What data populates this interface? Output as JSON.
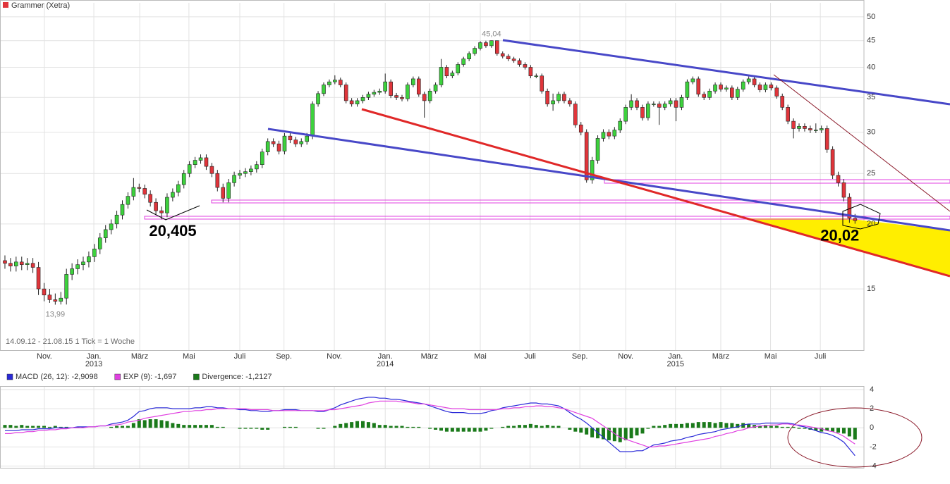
{
  "chart_data": [
    {
      "type": "candlestick",
      "title": "Grammer (Xetra)",
      "title_color": "#e0353b",
      "footnote": "14.09.12 - 21.08.15   1 Tick = 1 Woche",
      "up_color": "#3dd13d",
      "down_color": "#e0353b",
      "log_scale": true,
      "grid": true,
      "xlim": [
        -0.88,
        153.6
      ],
      "ylim": [
        11.44,
        53.2
      ],
      "yticks": [
        50,
        45,
        40,
        35,
        30,
        25,
        20,
        15
      ],
      "xticks": [
        {
          "value": 7.06,
          "label": "Nov."
        },
        {
          "value": 15.9,
          "label": "Jan."
        },
        {
          "value": 24.1,
          "label": "März"
        },
        {
          "value": 32.9,
          "label": "Mai"
        },
        {
          "value": 42.0,
          "label": "Juli"
        },
        {
          "value": 49.9,
          "label": "Sep."
        },
        {
          "value": 58.9,
          "label": "Nov."
        },
        {
          "value": 68.0,
          "label": "Jan."
        },
        {
          "value": 75.9,
          "label": "März"
        },
        {
          "value": 85.0,
          "label": "Mai"
        },
        {
          "value": 93.9,
          "label": "Juli"
        },
        {
          "value": 102.8,
          "label": "Sep."
        },
        {
          "value": 111.0,
          "label": "Nov."
        },
        {
          "value": 119.9,
          "label": "Jan."
        },
        {
          "value": 128.0,
          "label": "März"
        },
        {
          "value": 136.9,
          "label": "Mai"
        },
        {
          "value": 145.8,
          "label": "Juli"
        }
      ],
      "year_labels": [
        {
          "value": 15.9,
          "label": "2013"
        },
        {
          "value": 68.0,
          "label": "2014"
        },
        {
          "value": 119.9,
          "label": "2015"
        }
      ],
      "open": [
        17.0,
        16.8,
        16.6,
        16.9,
        16.7,
        16.8,
        16.5,
        15.0,
        14.6,
        14.3,
        14.2,
        14.4,
        16.0,
        16.4,
        16.7,
        16.9,
        17.3,
        17.9,
        18.8,
        19.5,
        20.0,
        20.8,
        21.8,
        22.6,
        23.5,
        23.4,
        22.8,
        22.0,
        21.2,
        21.0,
        22.5,
        23.0,
        23.8,
        25.0,
        26.0,
        26.5,
        26.8,
        25.8,
        25.0,
        23.5,
        22.4,
        24.0,
        24.8,
        25.0,
        25.2,
        25.5,
        26.0,
        27.5,
        28.8,
        28.5,
        27.6,
        29.5,
        29.0,
        28.5,
        28.8,
        29.5,
        34.0,
        35.6,
        37.0,
        37.5,
        37.8,
        37.0,
        34.5,
        34.0,
        34.5,
        35.0,
        35.5,
        35.8,
        36.0,
        37.5,
        35.3,
        35.0,
        34.8,
        37.0,
        38.0,
        35.5,
        34.5,
        36.0,
        37.0,
        40.0,
        38.5,
        39.0,
        40.5,
        41.5,
        42.5,
        43.5,
        44.6,
        44.0,
        45.0,
        42.5,
        42.0,
        41.5,
        41.2,
        40.5,
        40.0,
        38.5,
        38.5,
        36.0,
        34.0,
        34.5,
        35.5,
        34.5,
        34.0,
        31.0,
        30.0,
        24.3,
        26.5,
        29.2,
        30.0,
        29.5,
        30.3,
        31.5,
        33.5,
        34.5,
        33.5,
        32.0,
        34.0,
        34.0,
        33.5,
        34.0,
        34.5,
        33.5,
        35.0,
        37.5,
        38.0,
        35.5,
        35.0,
        36.0,
        37.0,
        36.3,
        36.5,
        35.0,
        36.3,
        37.5,
        38.0,
        37.0,
        36.2,
        37.0,
        36.5,
        35.2,
        33.5,
        31.5,
        30.5,
        30.8,
        30.5,
        30.3,
        30.3,
        30.5,
        27.8,
        24.8,
        24.0,
        22.5,
        20.5
      ],
      "high": [
        17.4,
        17.2,
        17.3,
        17.3,
        17.2,
        17.2,
        16.9,
        15.4,
        15.0,
        14.7,
        14.8,
        16.4,
        16.8,
        17.1,
        17.3,
        17.7,
        18.3,
        19.2,
        19.9,
        20.4,
        21.2,
        22.2,
        23.0,
        24.5,
        23.9,
        23.8,
        23.2,
        22.4,
        21.6,
        22.9,
        23.4,
        24.2,
        25.4,
        26.4,
        26.9,
        27.2,
        27.2,
        26.2,
        25.4,
        23.9,
        24.4,
        25.2,
        25.4,
        25.6,
        25.9,
        26.4,
        27.9,
        29.2,
        29.2,
        28.9,
        29.9,
        29.9,
        29.4,
        29.2,
        29.9,
        34.4,
        36.0,
        37.4,
        37.9,
        38.6,
        38.2,
        37.4,
        34.9,
        34.9,
        35.4,
        35.9,
        36.2,
        36.4,
        38.9,
        37.9,
        35.7,
        35.4,
        37.4,
        38.4,
        38.4,
        35.9,
        36.4,
        37.4,
        41.5,
        40.4,
        39.4,
        40.9,
        41.9,
        42.9,
        43.9,
        44.9,
        45.0,
        45.04,
        45.0,
        42.9,
        42.4,
        41.9,
        41.6,
        40.9,
        40.4,
        38.9,
        38.9,
        36.4,
        35.6,
        35.9,
        35.9,
        34.9,
        34.4,
        31.4,
        30.4,
        26.9,
        29.6,
        30.4,
        30.4,
        30.7,
        31.9,
        33.9,
        35.5,
        34.9,
        33.9,
        34.4,
        34.4,
        34.4,
        34.4,
        34.9,
        34.9,
        35.4,
        37.9,
        38.4,
        38.4,
        35.9,
        36.4,
        37.4,
        37.4,
        36.9,
        36.9,
        36.7,
        37.9,
        38.4,
        38.4,
        37.4,
        37.4,
        37.4,
        36.9,
        35.6,
        33.9,
        31.9,
        31.2,
        31.2,
        30.9,
        31.2,
        30.9,
        30.9,
        28.2,
        25.2,
        24.4,
        22.9,
        20.9
      ],
      "low": [
        16.4,
        16.2,
        16.2,
        16.3,
        16.3,
        16.1,
        14.6,
        14.2,
        14.1,
        13.99,
        14.0,
        14.0,
        15.6,
        16.0,
        16.3,
        16.5,
        16.9,
        17.5,
        18.4,
        19.1,
        19.6,
        20.4,
        21.4,
        22.2,
        23.0,
        22.4,
        21.6,
        20.8,
        20.405,
        20.6,
        22.1,
        22.6,
        23.4,
        24.6,
        25.6,
        26.1,
        25.4,
        24.6,
        23.1,
        22.0,
        22.0,
        23.6,
        24.4,
        24.6,
        24.8,
        25.1,
        25.6,
        27.1,
        28.1,
        27.2,
        27.2,
        28.6,
        28.1,
        28.1,
        28.4,
        29.1,
        33.6,
        35.2,
        36.6,
        37.1,
        36.6,
        34.1,
        33.6,
        33.6,
        34.1,
        34.6,
        35.1,
        35.4,
        35.6,
        34.9,
        34.6,
        34.4,
        34.4,
        36.6,
        35.1,
        32.0,
        34.1,
        35.6,
        36.6,
        38.1,
        38.1,
        38.6,
        40.1,
        41.1,
        42.1,
        43.1,
        43.6,
        43.6,
        42.1,
        41.6,
        41.1,
        40.8,
        40.1,
        39.6,
        38.1,
        38.1,
        35.6,
        33.6,
        33.0,
        34.1,
        34.1,
        33.6,
        30.6,
        29.6,
        24.0,
        23.9,
        26.1,
        28.8,
        29.1,
        29.1,
        29.9,
        31.1,
        33.1,
        33.1,
        31.6,
        31.6,
        33.6,
        31.0,
        33.1,
        33.6,
        31.5,
        33.1,
        34.6,
        37.1,
        35.1,
        34.6,
        34.6,
        35.6,
        35.9,
        35.9,
        34.6,
        34.6,
        35.9,
        37.1,
        36.6,
        35.8,
        35.8,
        36.1,
        34.8,
        33.1,
        31.1,
        29.2,
        30.1,
        30.1,
        29.9,
        29.9,
        29.9,
        27.4,
        24.4,
        23.6,
        22.1,
        20.1,
        20.02
      ],
      "close": [
        16.8,
        16.6,
        16.9,
        16.7,
        16.8,
        16.5,
        15.0,
        14.6,
        14.3,
        14.2,
        14.4,
        16.0,
        16.4,
        16.7,
        16.9,
        17.3,
        17.9,
        18.8,
        19.5,
        20.0,
        20.8,
        21.8,
        22.6,
        23.5,
        23.4,
        22.8,
        22.0,
        21.2,
        21.0,
        22.5,
        23.0,
        23.8,
        25.0,
        26.0,
        26.5,
        26.8,
        25.8,
        25.0,
        23.5,
        22.4,
        24.0,
        24.8,
        25.0,
        25.2,
        25.5,
        26.0,
        27.5,
        28.8,
        28.5,
        27.6,
        29.5,
        29.0,
        28.5,
        28.8,
        29.5,
        34.0,
        35.6,
        37.0,
        37.5,
        37.8,
        37.0,
        34.5,
        34.0,
        34.5,
        35.0,
        35.5,
        35.8,
        36.0,
        37.5,
        35.3,
        35.0,
        34.8,
        37.0,
        38.0,
        35.5,
        34.5,
        36.0,
        37.0,
        40.0,
        38.5,
        39.0,
        40.5,
        41.5,
        42.5,
        43.5,
        44.6,
        44.0,
        45.0,
        42.5,
        42.0,
        41.5,
        41.2,
        40.5,
        40.0,
        38.5,
        38.5,
        36.0,
        34.0,
        34.5,
        35.5,
        34.5,
        34.0,
        31.0,
        30.0,
        24.3,
        26.5,
        29.2,
        30.0,
        29.5,
        30.3,
        31.5,
        33.5,
        34.5,
        33.5,
        32.0,
        34.0,
        34.0,
        33.5,
        34.0,
        34.5,
        33.5,
        35.0,
        37.5,
        38.0,
        35.5,
        35.0,
        36.0,
        37.0,
        36.3,
        36.5,
        35.0,
        36.3,
        37.5,
        38.0,
        37.0,
        36.2,
        37.0,
        36.5,
        35.2,
        33.5,
        31.5,
        30.5,
        30.8,
        30.5,
        30.3,
        30.3,
        30.5,
        27.8,
        24.8,
        24.0,
        22.5,
        20.5,
        20.3
      ],
      "extreme_labels": [
        {
          "value": 45.04,
          "label": "45,04"
        },
        {
          "value": 13.99,
          "label": "13,99"
        }
      ],
      "callouts": [
        {
          "value": 20.405,
          "label": "20,405"
        },
        {
          "value": 20.02,
          "label": "20,02"
        }
      ]
    },
    {
      "type": "macd",
      "xlim": [
        -0.88,
        153.6
      ],
      "ylim": [
        -4.26,
        4.37
      ],
      "yticks": [
        4,
        2,
        0,
        -2,
        -4
      ],
      "grid": true,
      "series": [
        {
          "name": "MACD (26, 12): -2,9098",
          "color": "#2a2ad8",
          "kind": "line",
          "values": [
            -0.3,
            -0.3,
            -0.3,
            -0.2,
            -0.2,
            -0.2,
            -0.1,
            -0.1,
            -0.1,
            0.0,
            0.0,
            0.0,
            0.0,
            0.1,
            0.1,
            0.1,
            0.1,
            0.2,
            0.2,
            0.4,
            0.5,
            0.6,
            0.8,
            1.2,
            1.7,
            1.8,
            2.0,
            2.1,
            2.1,
            2.1,
            2.0,
            2.0,
            2.0,
            2.0,
            2.1,
            2.1,
            2.2,
            2.2,
            2.1,
            2.1,
            2.0,
            2.0,
            1.9,
            1.9,
            1.8,
            1.8,
            1.7,
            1.7,
            1.8,
            1.8,
            1.9,
            1.9,
            1.9,
            1.8,
            1.8,
            1.8,
            1.7,
            1.7,
            1.9,
            2.1,
            2.4,
            2.6,
            2.8,
            3.0,
            3.1,
            3.2,
            3.2,
            3.1,
            3.1,
            3.0,
            3.0,
            2.9,
            2.8,
            2.7,
            2.6,
            2.5,
            2.3,
            2.1,
            1.9,
            1.7,
            1.6,
            1.6,
            1.6,
            1.5,
            1.5,
            1.5,
            1.6,
            1.8,
            1.9,
            2.1,
            2.2,
            2.3,
            2.4,
            2.5,
            2.6,
            2.6,
            2.5,
            2.5,
            2.4,
            2.3,
            2.0,
            1.6,
            1.2,
            0.9,
            0.5,
            0.0,
            -0.5,
            -1.0,
            -1.5,
            -2.0,
            -2.5,
            -2.5,
            -2.5,
            -2.4,
            -2.4,
            -2.1,
            -1.8,
            -1.7,
            -1.6,
            -1.4,
            -1.3,
            -1.2,
            -1.0,
            -0.9,
            -0.7,
            -0.6,
            -0.5,
            -0.4,
            -0.2,
            -0.1,
            0.0,
            0.1,
            0.3,
            0.4,
            0.4,
            0.4,
            0.5,
            0.5,
            0.5,
            0.5,
            0.5,
            0.4,
            0.2,
            0.1,
            -0.1,
            -0.3,
            -0.5,
            -0.6,
            -0.8,
            -1.1,
            -1.5,
            -2.2,
            -2.9098
          ]
        },
        {
          "name": "EXP (9): -1,697",
          "color": "#e040e0",
          "kind": "line",
          "values": [
            -0.6,
            -0.6,
            -0.5,
            -0.5,
            -0.4,
            -0.4,
            -0.3,
            -0.3,
            -0.2,
            -0.2,
            -0.1,
            -0.1,
            0.0,
            0.0,
            0.0,
            0.1,
            0.1,
            0.2,
            0.2,
            0.3,
            0.3,
            0.4,
            0.6,
            0.7,
            0.8,
            1.0,
            1.1,
            1.2,
            1.3,
            1.4,
            1.5,
            1.6,
            1.7,
            1.7,
            1.8,
            1.8,
            1.9,
            1.9,
            2.0,
            2.0,
            2.0,
            2.0,
            2.0,
            2.0,
            1.9,
            1.9,
            1.9,
            1.9,
            1.8,
            1.8,
            1.8,
            1.8,
            1.8,
            1.8,
            1.8,
            1.8,
            1.8,
            1.8,
            1.9,
            1.9,
            2.0,
            2.1,
            2.2,
            2.3,
            2.4,
            2.6,
            2.7,
            2.8,
            2.8,
            2.8,
            2.8,
            2.7,
            2.7,
            2.6,
            2.5,
            2.5,
            2.4,
            2.3,
            2.2,
            2.1,
            2.0,
            2.0,
            2.0,
            1.9,
            1.9,
            1.9,
            1.9,
            1.9,
            1.9,
            2.0,
            2.0,
            2.1,
            2.1,
            2.2,
            2.2,
            2.3,
            2.3,
            2.2,
            2.2,
            2.1,
            2.0,
            1.8,
            1.6,
            1.4,
            1.2,
            1.0,
            0.6,
            0.2,
            -0.2,
            -0.6,
            -1.0,
            -1.2,
            -1.4,
            -1.6,
            -1.8,
            -2.0,
            -2.0,
            -1.9,
            -1.9,
            -1.8,
            -1.7,
            -1.6,
            -1.5,
            -1.4,
            -1.3,
            -1.2,
            -1.1,
            -0.9,
            -0.8,
            -0.6,
            -0.5,
            -0.3,
            -0.2,
            0.0,
            0.1,
            0.2,
            0.2,
            0.3,
            0.3,
            0.4,
            0.4,
            0.3,
            0.3,
            0.2,
            0.1,
            0.0,
            -0.1,
            -0.3,
            -0.4,
            -0.6,
            -0.9,
            -1.3,
            -1.697
          ]
        },
        {
          "name": "Divergence: -1,2127",
          "color": "#1a7a1a",
          "kind": "bar",
          "values": [
            0.3,
            0.3,
            0.2,
            0.3,
            0.2,
            0.2,
            0.2,
            0.2,
            0.1,
            0.2,
            0.1,
            0.1,
            0.0,
            0.1,
            0.1,
            0.0,
            0.0,
            0.0,
            0.0,
            0.1,
            0.2,
            0.2,
            0.2,
            0.5,
            0.9,
            0.8,
            0.9,
            0.9,
            0.8,
            0.7,
            0.5,
            0.4,
            0.3,
            0.3,
            0.3,
            0.3,
            0.3,
            0.3,
            0.1,
            0.1,
            0.0,
            0.0,
            -0.1,
            -0.1,
            -0.1,
            -0.1,
            -0.2,
            -0.2,
            0.0,
            0.0,
            0.1,
            0.1,
            0.1,
            0.0,
            0.0,
            0.0,
            -0.1,
            -0.1,
            0.0,
            0.2,
            0.4,
            0.5,
            0.6,
            0.7,
            0.7,
            0.6,
            0.5,
            0.3,
            0.3,
            0.2,
            0.2,
            0.2,
            0.1,
            0.1,
            0.1,
            0.0,
            -0.1,
            -0.2,
            -0.3,
            -0.4,
            -0.4,
            -0.4,
            -0.4,
            -0.4,
            -0.4,
            -0.4,
            -0.3,
            -0.1,
            0.0,
            0.1,
            0.2,
            0.2,
            0.3,
            0.3,
            0.4,
            0.3,
            0.2,
            0.3,
            0.2,
            0.2,
            0.0,
            -0.2,
            -0.4,
            -0.5,
            -0.7,
            -1.0,
            -1.1,
            -1.2,
            -1.3,
            -1.4,
            -1.5,
            -1.3,
            -1.1,
            -0.8,
            -0.6,
            -0.1,
            0.2,
            0.2,
            0.3,
            0.4,
            0.4,
            0.4,
            0.5,
            0.5,
            0.6,
            0.6,
            0.6,
            0.5,
            0.6,
            0.5,
            0.5,
            0.4,
            0.5,
            0.4,
            0.3,
            0.2,
            0.3,
            0.2,
            0.2,
            0.1,
            0.1,
            0.1,
            -0.1,
            -0.1,
            -0.2,
            -0.3,
            -0.4,
            -0.3,
            -0.4,
            -0.5,
            -0.6,
            -0.9,
            -1.2127
          ]
        }
      ]
    }
  ]
}
